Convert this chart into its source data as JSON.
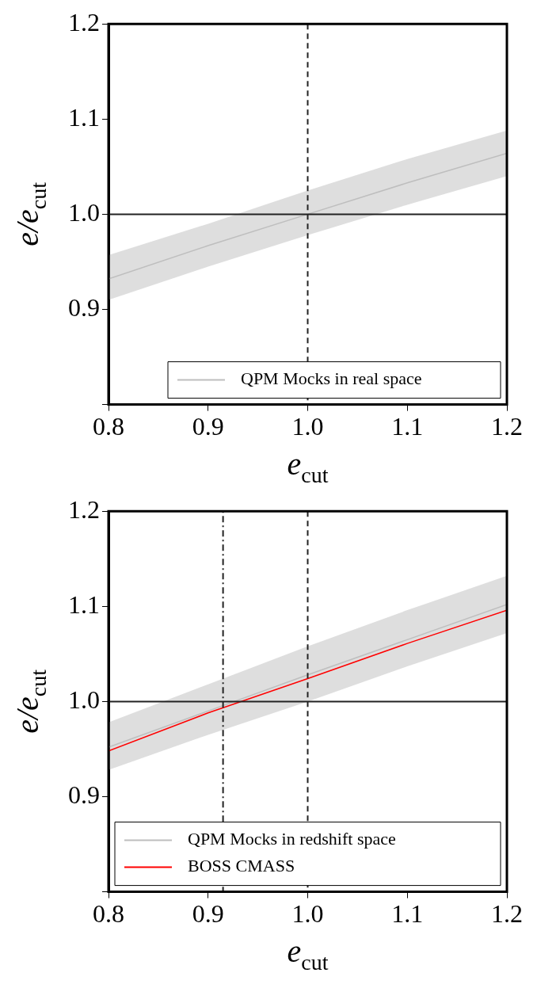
{
  "chart_data": [
    {
      "type": "line",
      "x": [
        0.8,
        0.9,
        1.0,
        1.1,
        1.2
      ],
      "xlabel": "e$_{cut}$",
      "ylabel": "e/e$_{cut}$",
      "xlim": [
        0.8,
        1.2
      ],
      "xticks": [
        {
          "value": 0.8,
          "label": "0.8"
        },
        {
          "value": 0.9,
          "label": "0.9"
        },
        {
          "value": 1,
          "label": "1.0"
        },
        {
          "value": 1.1,
          "label": "1.1"
        },
        {
          "value": 1.2,
          "label": "1.2"
        }
      ],
      "ylim": [
        0.8,
        1.2
      ],
      "yticks": [
        {
          "value": 0.8,
          "label": null
        },
        {
          "value": 0.9,
          "label": "0.9"
        },
        {
          "value": 1,
          "label": "1.0"
        },
        {
          "value": 1.1,
          "label": "1.1"
        },
        {
          "value": 1.2,
          "label": "1.2"
        }
      ],
      "grid": false,
      "legend": "bottom right",
      "series": [
        {
          "name": "QPM Mocks in real space",
          "color": "#bebebe",
          "values": [
            0.932,
            0.967,
            1.0,
            1.033,
            1.064
          ],
          "lower": [
            0.91,
            0.945,
            0.978,
            1.01,
            1.04
          ],
          "upper": [
            0.957,
            0.99,
            1.025,
            1.058,
            1.088
          ]
        }
      ],
      "ref_lines": [
        {
          "axis": "y",
          "value": 1.0,
          "label": null,
          "color": "#222222",
          "line_style": "solid"
        },
        {
          "axis": "x",
          "value": 1.0,
          "label": null,
          "color": "#222222",
          "line_style": "dashed"
        }
      ]
    },
    {
      "type": "line",
      "x": [
        0.8,
        0.9,
        1.0,
        1.1,
        1.2
      ],
      "xlabel": "e$_{cut}$",
      "ylabel": "e/e$_{cut}$",
      "xlim": [
        0.8,
        1.2
      ],
      "xticks": [
        {
          "value": 0.8,
          "label": "0.8"
        },
        {
          "value": 0.9,
          "label": "0.9"
        },
        {
          "value": 1,
          "label": "1.0"
        },
        {
          "value": 1.1,
          "label": "1.1"
        },
        {
          "value": 1.2,
          "label": "1.2"
        }
      ],
      "ylim": [
        0.8,
        1.2
      ],
      "yticks": [
        {
          "value": 0.8,
          "label": null
        },
        {
          "value": 0.9,
          "label": "0.9"
        },
        {
          "value": 1,
          "label": "1.0"
        },
        {
          "value": 1.1,
          "label": "1.1"
        },
        {
          "value": 1.2,
          "label": "1.2"
        }
      ],
      "grid": false,
      "legend": "bottom",
      "series": [
        {
          "name": "QPM Mocks in redshift space",
          "color": "#bebebe",
          "values": [
            0.952,
            0.99,
            1.028,
            1.065,
            1.102
          ],
          "lower": [
            0.928,
            0.965,
            1.0,
            1.037,
            1.072
          ],
          "upper": [
            0.978,
            1.018,
            1.058,
            1.096,
            1.132
          ]
        },
        {
          "name": "BOSS CMASS",
          "color": "#ff0000",
          "values": [
            0.948,
            0.988,
            1.024,
            1.061,
            1.096
          ]
        }
      ],
      "ref_lines": [
        {
          "axis": "y",
          "value": 1.0,
          "label": null,
          "color": "#222222",
          "line_style": "solid"
        },
        {
          "axis": "x",
          "value": 1.0,
          "label": null,
          "color": "#222222",
          "line_style": "dashed"
        },
        {
          "axis": "x",
          "value": 0.915,
          "label": null,
          "color": "#222222",
          "line_style": "dotted"
        }
      ]
    }
  ]
}
